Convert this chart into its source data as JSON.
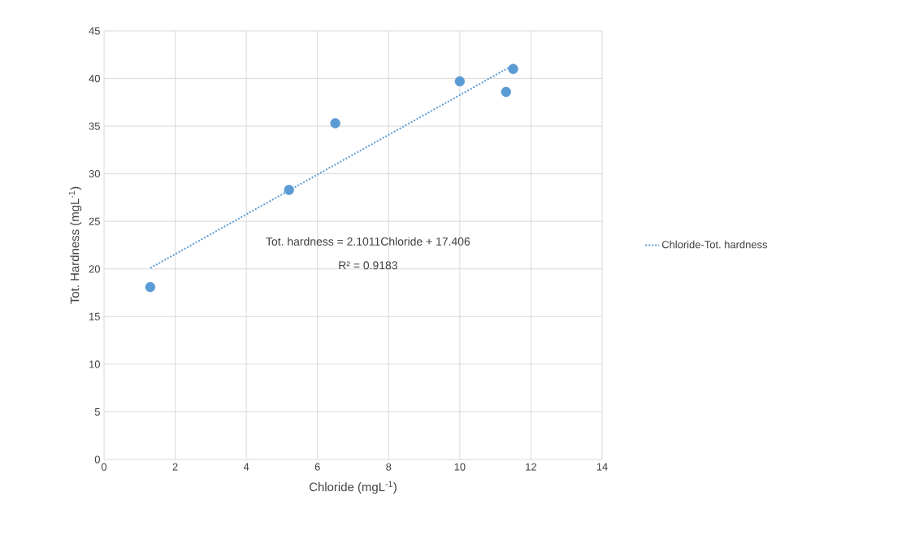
{
  "chart_data": {
    "type": "scatter",
    "xlabel": "Chloride (mgL$^{-1}$)",
    "ylabel": "Tot. Hardness (mgL$^{-1}$)",
    "series": [
      {
        "marker": "circle",
        "color": "#5b9bd5",
        "x": [
          1.3,
          5.2,
          6.5,
          10.0,
          11.3,
          11.5
        ],
        "values": [
          18.1,
          28.3,
          35.3,
          39.7,
          38.6,
          41.0
        ]
      },
      {
        "type": "line",
        "name": "Chloride-Tot. hardness",
        "marker": "none",
        "color": "#5b9bd5",
        "line_style": "dotted",
        "x": [
          1.3,
          11.5
        ],
        "values": [
          20.1,
          41.4
        ]
      }
    ],
    "annotations": [
      "Tot. hardness = 2.1011Chloride + 17.406",
      "R² = 0.9183"
    ],
    "xlim": [
      0,
      14
    ],
    "xticks": [
      0,
      2,
      4,
      6,
      8,
      10,
      12,
      14
    ],
    "ylim": [
      0,
      45
    ],
    "yticks": [
      0,
      5,
      10,
      15,
      20,
      25,
      30,
      35,
      40,
      45
    ],
    "grid": true,
    "legend": "right"
  }
}
